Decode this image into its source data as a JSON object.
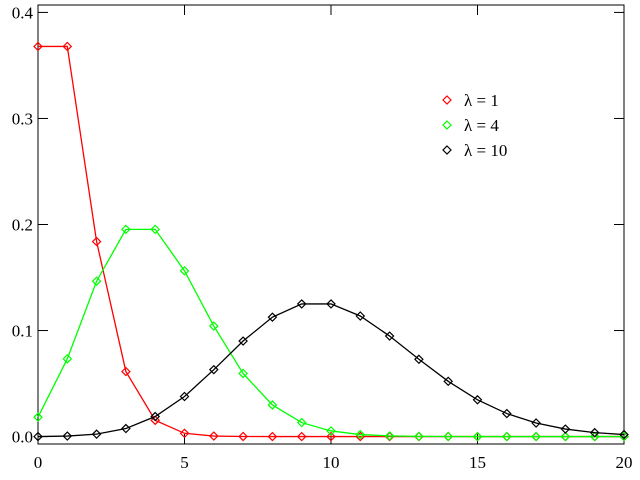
{
  "chart_data": {
    "type": "line",
    "x": [
      0,
      1,
      2,
      3,
      4,
      5,
      6,
      7,
      8,
      9,
      10,
      11,
      12,
      13,
      14,
      15,
      16,
      17,
      18,
      19,
      20
    ],
    "series": [
      {
        "name": "λ = 1",
        "color": "#ff0000",
        "values": [
          0.3679,
          0.3679,
          0.1839,
          0.0613,
          0.0153,
          0.0031,
          0.0005,
          0.0001,
          0,
          0,
          0,
          0,
          0,
          0,
          0,
          0,
          0,
          0,
          0,
          0,
          0
        ]
      },
      {
        "name": "λ = 4",
        "color": "#00ff00",
        "values": [
          0.0183,
          0.0733,
          0.1465,
          0.1954,
          0.1954,
          0.1563,
          0.1042,
          0.0595,
          0.0298,
          0.0132,
          0.0053,
          0.0019,
          0.0006,
          0.0002,
          0.0001,
          0,
          0,
          0,
          0,
          0,
          0
        ]
      },
      {
        "name": "λ = 10",
        "color": "#000000",
        "values": [
          0,
          0.0005,
          0.0023,
          0.0076,
          0.0189,
          0.0378,
          0.0631,
          0.0901,
          0.1126,
          0.1251,
          0.1251,
          0.1137,
          0.0948,
          0.0729,
          0.0521,
          0.0347,
          0.0217,
          0.0128,
          0.0071,
          0.0037,
          0.0019
        ]
      }
    ],
    "xlim": [
      0,
      20
    ],
    "xticks": [
      0,
      5,
      10,
      15,
      20
    ],
    "ylim": [
      -0.007,
      0.407
    ],
    "yticks": [
      {
        "value": 0,
        "label": "0.0"
      },
      0.1,
      0.2,
      0.3,
      0.4
    ],
    "legend": "upper right"
  }
}
